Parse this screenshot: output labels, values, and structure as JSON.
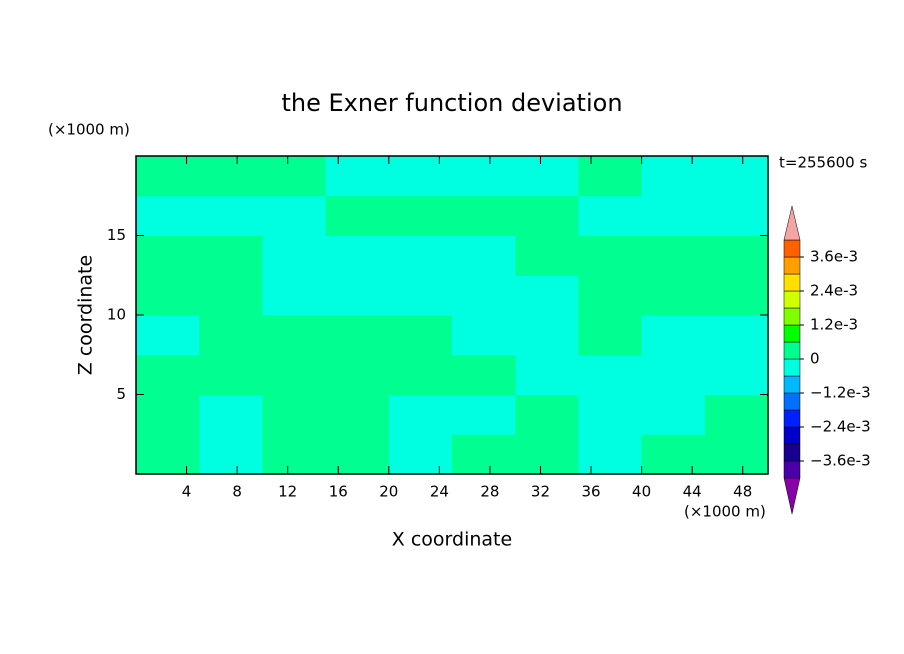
{
  "chart_data": {
    "type": "contour",
    "title": "the Exner function deviation",
    "xlabel": "X coordinate",
    "ylabel": "Z coordinate",
    "x_unit": "(×1000 m)",
    "y_unit": "(×1000 m)",
    "annotation": "t=255600 s",
    "xlim": [
      0,
      50
    ],
    "ylim": [
      0,
      20
    ],
    "xticks": [
      4,
      8,
      12,
      16,
      20,
      24,
      28,
      32,
      36,
      40,
      44,
      48
    ],
    "yticks": [
      5,
      10,
      15
    ],
    "x": [
      2.5,
      7.5,
      12.5,
      17.5,
      22.5,
      27.5,
      32.5,
      37.5,
      42.5,
      47.5
    ],
    "y": [
      1.25,
      3.75,
      6.25,
      8.75,
      11.25,
      13.75,
      16.25,
      18.75
    ],
    "z": [
      [
        0.0003,
        -0.0003,
        0.0003,
        0.0003,
        -0.0003,
        0.0003,
        0.0003,
        -0.0003,
        0.0003,
        0.0003
      ],
      [
        0.0003,
        -0.0003,
        0.0003,
        0.0003,
        -0.0003,
        -0.0003,
        0.0003,
        -0.0003,
        -0.0003,
        0.0003
      ],
      [
        0.0003,
        0.0003,
        0.0003,
        0.0003,
        0.0003,
        0.0003,
        -0.0003,
        -0.0003,
        -0.0003,
        -0.0003
      ],
      [
        -0.0003,
        0.0003,
        0.0003,
        0.0003,
        0.0003,
        -0.0003,
        -0.0003,
        0.0003,
        -0.0003,
        -0.0003
      ],
      [
        0.0003,
        0.0003,
        -0.0003,
        -0.0003,
        -0.0003,
        -0.0003,
        -0.0003,
        0.0003,
        0.0003,
        0.0003
      ],
      [
        0.0003,
        0.0003,
        -0.0003,
        -0.0003,
        -0.0003,
        -0.0003,
        0.0003,
        0.0003,
        0.0003,
        0.0003
      ],
      [
        -0.0003,
        -0.0003,
        -0.0003,
        0.0003,
        0.0003,
        0.0003,
        0.0003,
        -0.0003,
        -0.0003,
        -0.0003
      ],
      [
        0.0003,
        0.0003,
        0.0003,
        -0.0003,
        -0.0003,
        -0.0003,
        -0.0003,
        0.0003,
        -0.0003,
        -0.0003
      ]
    ],
    "levels": [
      -0.0042,
      -0.0036,
      -0.003,
      -0.0024,
      -0.0018,
      -0.0012,
      -0.0006,
      0,
      0.0006,
      0.0012,
      0.0018,
      0.0024,
      0.003,
      0.0036,
      0.0042
    ],
    "colors": [
      "#4a00a8",
      "#1a0090",
      "#0000c8",
      "#0020ff",
      "#0070ff",
      "#00b8ff",
      "#00ffe0",
      "#00ff90",
      "#00ff00",
      "#80ff00",
      "#d0ff00",
      "#ffe000",
      "#ffa000",
      "#ff6000",
      "#ff2000"
    ],
    "under_color": "#8800a8",
    "over_color": "#f4a4a4",
    "cbticks": [
      {
        "value": 0.0036,
        "label": "3.6e-3"
      },
      {
        "value": 0.0024,
        "label": "2.4e-3"
      },
      {
        "value": 0.0012,
        "label": "1.2e-3"
      },
      0,
      {
        "value": -0.0012,
        "label": "−1.2e-3"
      },
      {
        "value": -0.0024,
        "label": "−2.4e-3"
      },
      {
        "value": -0.0036,
        "label": "−3.6e-3"
      }
    ]
  }
}
